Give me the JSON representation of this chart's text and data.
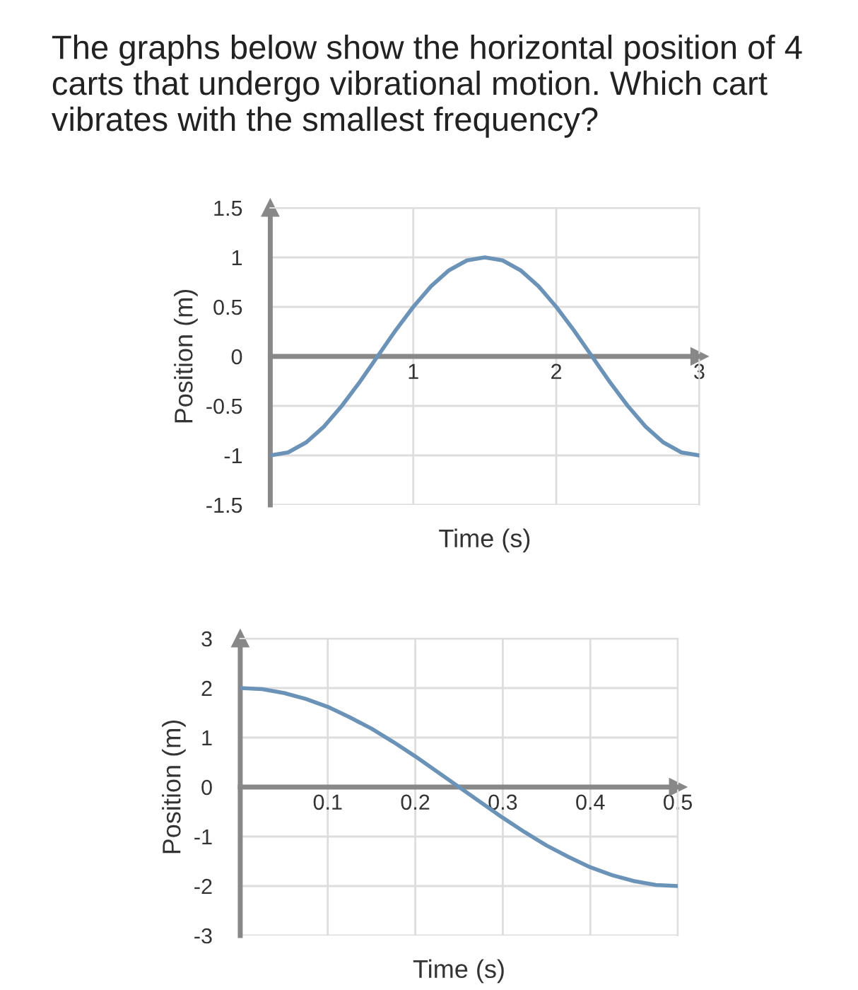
{
  "chart_data": [
    {
      "type": "line",
      "title": "The graphs below show the horizontal position of 4 carts that undergo vibrational motion. Which cart vibrates with the smallest frequency?",
      "xlabel": "Time (s)",
      "ylabel": "Position (m)",
      "x": [
        0,
        0.125,
        0.25,
        0.375,
        0.5,
        0.625,
        0.75,
        0.875,
        1,
        1.125,
        1.25,
        1.375,
        1.5,
        1.625,
        1.75,
        1.875,
        2,
        2.125,
        2.25,
        2.375,
        2.5,
        2.625,
        2.75,
        2.875,
        3
      ],
      "series": [
        {
          "color": "#6b93b8",
          "values": [
            -1,
            -0.97,
            -0.87,
            -0.71,
            -0.5,
            -0.26,
            0,
            0.26,
            0.5,
            0.71,
            0.87,
            0.97,
            1,
            0.97,
            0.87,
            0.71,
            0.5,
            0.26,
            0,
            -0.26,
            -0.5,
            -0.71,
            -0.87,
            -0.97,
            -1
          ]
        }
      ],
      "xlim": [
        0,
        3
      ],
      "xticks": [
        1,
        2,
        3
      ],
      "ylim": [
        -1.5,
        1.5
      ],
      "yticks": [
        -1.5,
        -1,
        -0.5,
        0,
        0.5,
        1,
        1.5
      ],
      "grid": true,
      "line_style": "solid",
      "marker": "none"
    },
    {
      "type": "line",
      "xlabel": "Time (s)",
      "ylabel": "Position (m)",
      "x": [
        0,
        0.025,
        0.05,
        0.075,
        0.1,
        0.125,
        0.15,
        0.175,
        0.2,
        0.225,
        0.25,
        0.275,
        0.3,
        0.325,
        0.35,
        0.375,
        0.4,
        0.425,
        0.45,
        0.475,
        0.5
      ],
      "series": [
        {
          "color": "#6b93b8",
          "values": [
            2,
            1.98,
            1.9,
            1.78,
            1.62,
            1.41,
            1.18,
            0.91,
            0.62,
            0.31,
            0,
            -0.31,
            -0.62,
            -0.91,
            -1.18,
            -1.41,
            -1.62,
            -1.78,
            -1.9,
            -1.98,
            -2
          ]
        }
      ],
      "xlim": [
        0,
        0.5
      ],
      "xticks": [
        0.1,
        0.2,
        0.3,
        0.4,
        0.5
      ],
      "ylim": [
        -3,
        3
      ],
      "yticks": [
        -3,
        -2,
        -1,
        0,
        1,
        2,
        3
      ],
      "grid": true,
      "line_style": "solid",
      "marker": "none"
    }
  ]
}
